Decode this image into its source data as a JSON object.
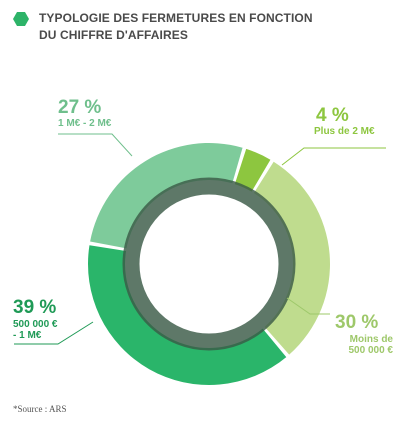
{
  "title_lines": [
    "TYPOLOGIE DES FERMETURES EN FONCTION",
    "DU CHIFFRE D'AFFAIRES"
  ],
  "source": "*Source : ARS",
  "colors": {
    "title": "#4a4a4a",
    "hex": "#2db368",
    "inner_ring": "#3a5a47"
  },
  "chart_data": {
    "type": "pie",
    "style": "donut",
    "title": "TYPOLOGIE DES FERMETURES EN FONCTION DU CHIFFRE D'AFFAIRES",
    "slices": [
      {
        "value": 4,
        "label": "4 %",
        "category": [
          "Plus de 2 M€"
        ],
        "color": "#8dc63f"
      },
      {
        "value": 30,
        "label": "30 %",
        "category": [
          "Moins de",
          "500 000 €"
        ],
        "color": "#bfdc8e"
      },
      {
        "value": 39,
        "label": "39 %",
        "category": [
          "500 000 €",
          "- 1 M€"
        ],
        "color": "#2ab56a"
      },
      {
        "value": 27,
        "label": "27 %",
        "category": [
          "1 M€ - 2 M€"
        ],
        "color": "#7ecb9b"
      }
    ],
    "label_colors": {
      "4 %": "#8dc63f",
      "30 %": "#9ec86a",
      "39 %": "#1f9a56",
      "27 %": "#6fbf8c"
    }
  }
}
